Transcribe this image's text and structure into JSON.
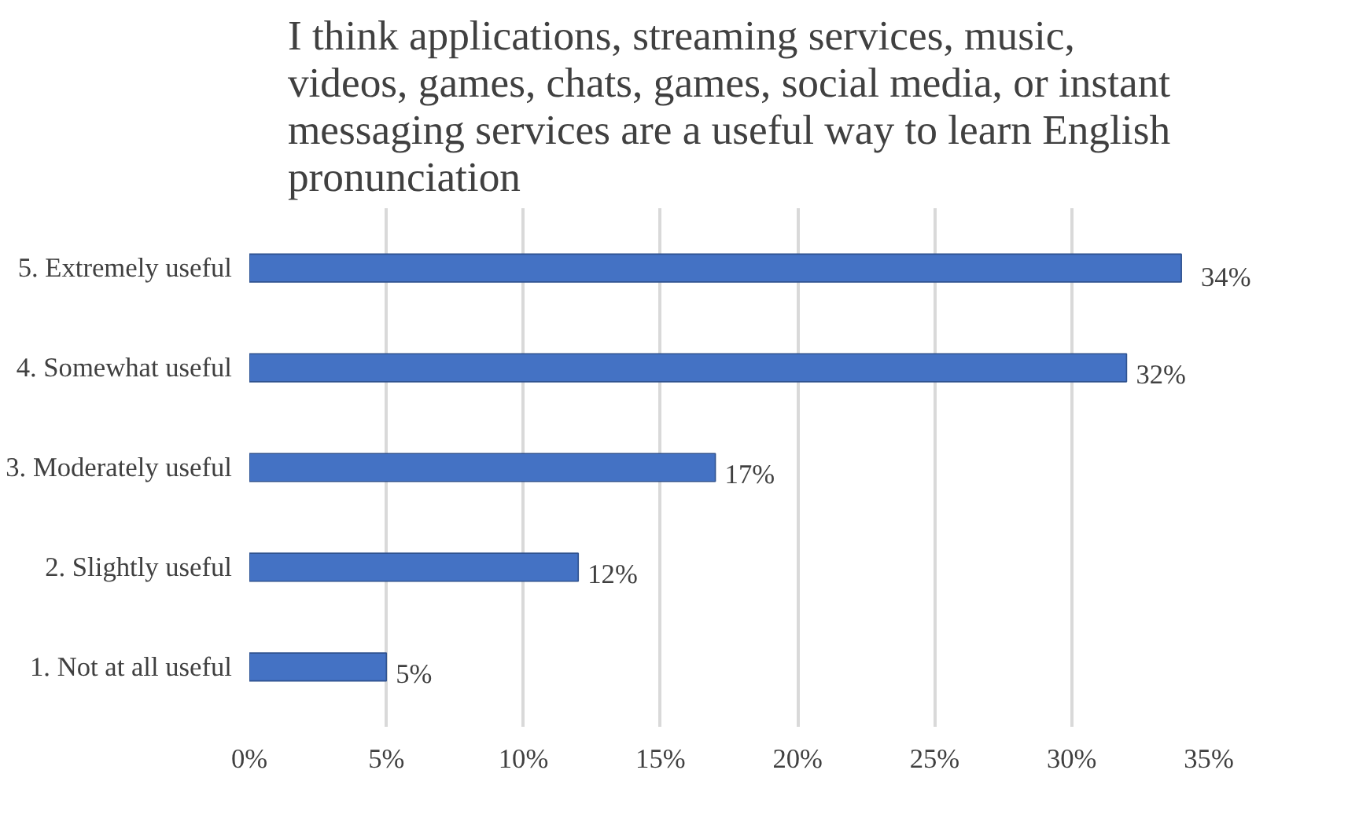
{
  "chart_data": {
    "type": "bar",
    "orientation": "horizontal",
    "title": "I think applications, streaming services, music, videos, games, chats, games, social media, or instant messaging services are a useful way to learn English pronunciation",
    "categories": [
      "5. Extremely useful",
      "4. Somewhat useful",
      "3. Moderately useful",
      "2. Slightly useful",
      "1. Not at all useful"
    ],
    "values": [
      34,
      32,
      17,
      12,
      5
    ],
    "value_labels": [
      "34%",
      "32%",
      "17%",
      "12%",
      "5%"
    ],
    "color": "#4472c4",
    "xlim": [
      0,
      35
    ],
    "xticks": [
      {
        "value": 0,
        "label": "0%"
      },
      {
        "value": 5,
        "label": "5%"
      },
      {
        "value": 10,
        "label": "10%"
      },
      {
        "value": 15,
        "label": "15%"
      },
      {
        "value": 20,
        "label": "20%"
      },
      {
        "value": 25,
        "label": "25%"
      },
      {
        "value": 30,
        "label": "30%"
      },
      {
        "value": 35,
        "label": "35%"
      }
    ],
    "grid": "x"
  }
}
